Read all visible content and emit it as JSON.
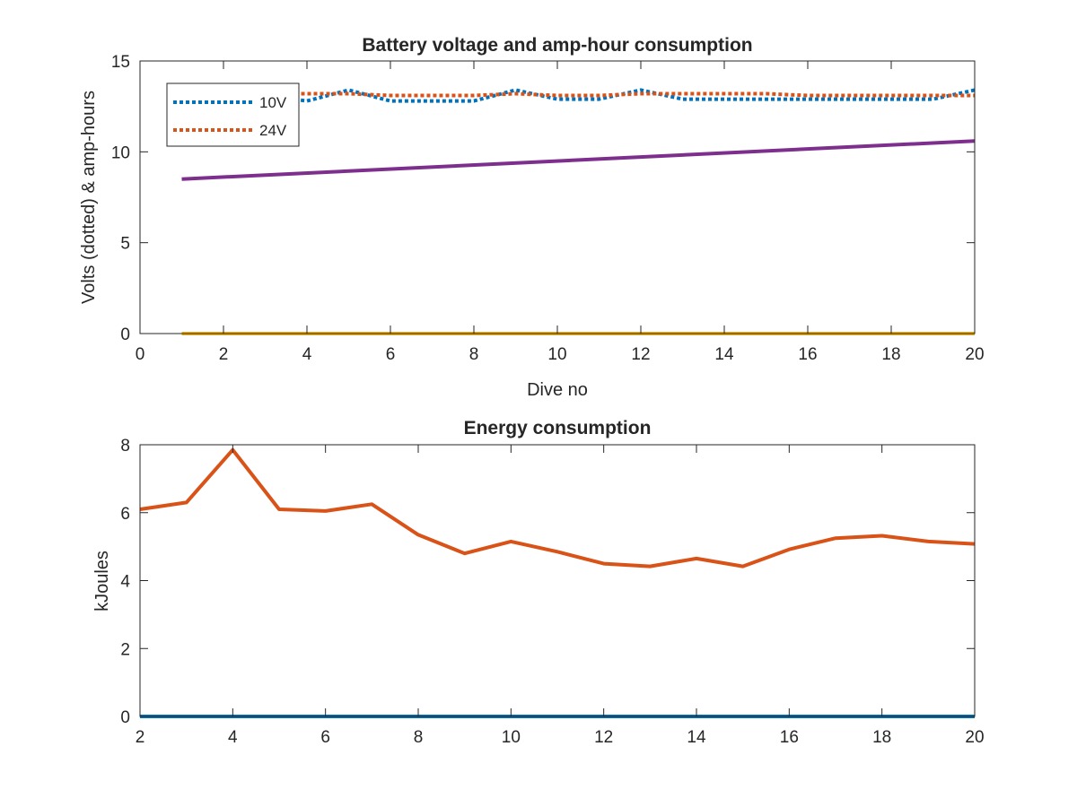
{
  "chart_data": [
    {
      "type": "line",
      "title": "Battery voltage and amp-hour consumption",
      "xlabel": "Dive no",
      "ylabel": "Volts (dotted) & amp-hours",
      "xlim": [
        0,
        20
      ],
      "ylim": [
        0,
        15
      ],
      "xticks": [
        0,
        2,
        4,
        6,
        8,
        10,
        12,
        14,
        16,
        18,
        20
      ],
      "yticks": [
        0,
        5,
        10,
        15
      ],
      "grid": false,
      "legend_position": "top-left",
      "series": [
        {
          "name": "10V",
          "style": "dotted",
          "color": "#0072BD",
          "x": [
            1,
            2,
            3,
            4,
            5,
            6,
            7,
            8,
            9,
            10,
            11,
            12,
            13,
            14,
            15,
            16,
            17,
            18,
            19,
            20
          ],
          "y": [
            13.0,
            13.0,
            13.1,
            12.8,
            13.4,
            12.8,
            12.8,
            12.8,
            13.4,
            12.9,
            12.9,
            13.4,
            12.9,
            12.9,
            12.9,
            12.9,
            12.9,
            12.9,
            12.9,
            13.4
          ]
        },
        {
          "name": "24V",
          "style": "dotted",
          "color": "#D95319",
          "x": [
            1,
            2,
            3,
            4,
            5,
            6,
            7,
            8,
            9,
            10,
            11,
            12,
            13,
            14,
            15,
            16,
            17,
            18,
            19,
            20
          ],
          "y": [
            13.2,
            13.2,
            13.2,
            13.2,
            13.2,
            13.1,
            13.1,
            13.1,
            13.2,
            13.1,
            13.1,
            13.2,
            13.2,
            13.2,
            13.2,
            13.1,
            13.1,
            13.1,
            13.1,
            13.1
          ]
        },
        {
          "style": "solid",
          "color": "#7E2F8E",
          "x": [
            1,
            20
          ],
          "y": [
            8.5,
            10.6
          ]
        },
        {
          "style": "solid",
          "color": "#EDB120",
          "x": [
            1,
            20
          ],
          "y": [
            0,
            0
          ]
        }
      ]
    },
    {
      "type": "line",
      "title": "Energy consumption",
      "xlabel": "",
      "ylabel": "kJoules",
      "xlim": [
        2,
        20
      ],
      "ylim": [
        0,
        8
      ],
      "xticks": [
        2,
        4,
        6,
        8,
        10,
        12,
        14,
        16,
        18,
        20
      ],
      "yticks": [
        0,
        2,
        4,
        6,
        8
      ],
      "grid": false,
      "series": [
        {
          "style": "solid",
          "color": "#D95319",
          "x": [
            2,
            3,
            4,
            5,
            6,
            7,
            8,
            9,
            10,
            11,
            12,
            13,
            14,
            15,
            16,
            17,
            18,
            19,
            20
          ],
          "y": [
            6.1,
            6.3,
            7.85,
            6.1,
            6.05,
            6.25,
            5.35,
            4.8,
            5.15,
            4.85,
            4.5,
            4.42,
            4.65,
            4.42,
            4.92,
            5.25,
            5.32,
            5.15,
            5.08
          ]
        },
        {
          "style": "solid",
          "color": "#0072BD",
          "x": [
            2,
            20
          ],
          "y": [
            0,
            0
          ]
        }
      ]
    }
  ]
}
